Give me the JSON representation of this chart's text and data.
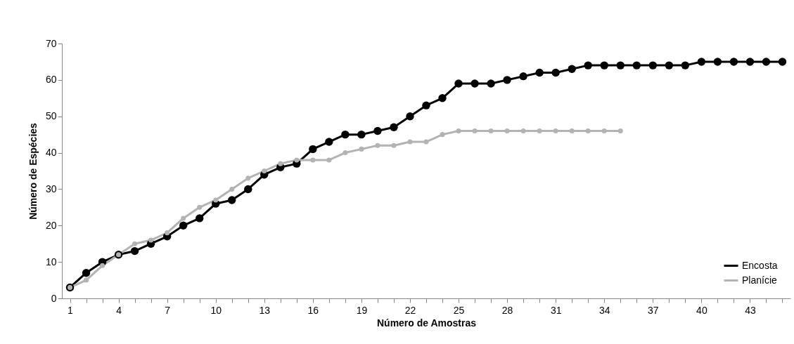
{
  "chart_data": {
    "type": "line",
    "xlabel": "Número de Amostras",
    "ylabel": "Número de Espécies",
    "x": [
      1,
      2,
      3,
      4,
      5,
      6,
      7,
      8,
      9,
      10,
      11,
      12,
      13,
      14,
      15,
      16,
      17,
      18,
      19,
      20,
      21,
      22,
      23,
      24,
      25,
      26,
      27,
      28,
      29,
      30,
      31,
      32,
      33,
      34,
      35,
      36,
      37,
      38,
      39,
      40,
      41,
      42,
      43,
      44,
      45
    ],
    "xlim": [
      0.5,
      45.5
    ],
    "xticks": [
      1,
      {
        "value": 2,
        "label": null
      },
      {
        "value": 3,
        "label": null
      },
      4,
      {
        "value": 5,
        "label": null
      },
      {
        "value": 6,
        "label": null
      },
      7,
      {
        "value": 8,
        "label": null
      },
      {
        "value": 9,
        "label": null
      },
      10,
      {
        "value": 11,
        "label": null
      },
      {
        "value": 12,
        "label": null
      },
      13,
      {
        "value": 14,
        "label": null
      },
      {
        "value": 15,
        "label": null
      },
      16,
      {
        "value": 17,
        "label": null
      },
      {
        "value": 18,
        "label": null
      },
      19,
      {
        "value": 20,
        "label": null
      },
      {
        "value": 21,
        "label": null
      },
      22,
      {
        "value": 23,
        "label": null
      },
      {
        "value": 24,
        "label": null
      },
      25,
      {
        "value": 26,
        "label": null
      },
      {
        "value": 27,
        "label": null
      },
      28,
      {
        "value": 29,
        "label": null
      },
      {
        "value": 30,
        "label": null
      },
      31,
      {
        "value": 32,
        "label": null
      },
      {
        "value": 33,
        "label": null
      },
      34,
      {
        "value": 35,
        "label": null
      },
      {
        "value": 36,
        "label": null
      },
      37,
      {
        "value": 38,
        "label": null
      },
      {
        "value": 39,
        "label": null
      },
      40,
      {
        "value": 41,
        "label": null
      },
      {
        "value": 42,
        "label": null
      },
      43,
      {
        "value": 44,
        "label": null
      },
      {
        "value": 45,
        "label": null
      }
    ],
    "ylim": [
      0,
      70
    ],
    "yticks": [
      0,
      10,
      20,
      30,
      40,
      50,
      60,
      70
    ],
    "marker": "circle",
    "line_style": "solid",
    "legend": "bottom right",
    "series": [
      {
        "name": "Encosta",
        "color": "#000000",
        "values": [
          3,
          7,
          10,
          12,
          13,
          15,
          17,
          20,
          22,
          26,
          27,
          30,
          34,
          36,
          37,
          41,
          43,
          45,
          45,
          46,
          47,
          50,
          53,
          55,
          59,
          59,
          59,
          60,
          61,
          62,
          62,
          63,
          64,
          64,
          64,
          64,
          64,
          64,
          64,
          65,
          65,
          65,
          65,
          65,
          65
        ]
      },
      {
        "name": "Planície",
        "color": "#b3b3b3",
        "values": [
          3,
          5,
          9,
          12,
          15,
          16,
          18,
          22,
          25,
          27,
          30,
          33,
          35,
          37,
          38,
          38,
          38,
          40,
          41,
          42,
          42,
          43,
          43,
          45,
          46,
          46,
          46,
          46,
          46,
          46,
          46,
          46,
          46,
          46,
          46,
          null,
          null,
          null,
          null,
          null,
          null,
          null,
          null,
          null,
          null
        ]
      }
    ]
  }
}
